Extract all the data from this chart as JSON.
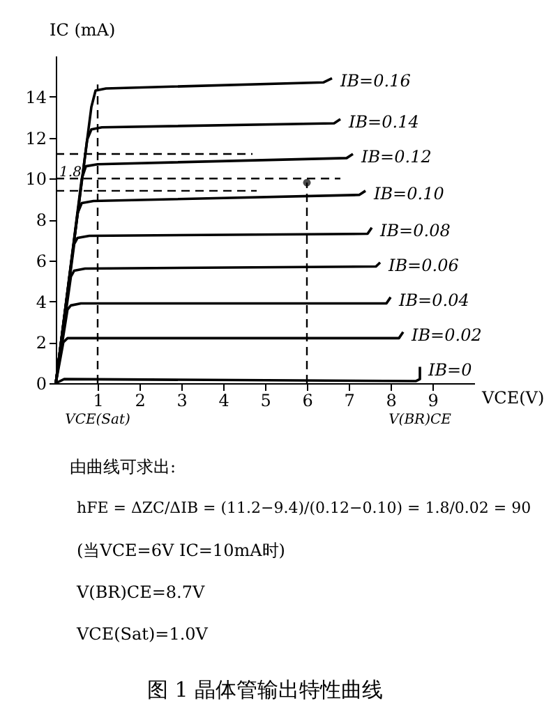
{
  "chart_data": {
    "type": "line",
    "title": "图 1   晶体管输出特性曲线",
    "xlabel": "VCE(V)",
    "ylabel": "IC (mA)",
    "xlim": [
      0,
      10
    ],
    "ylim": [
      0,
      16
    ],
    "xticks": [
      1,
      2,
      3,
      4,
      5,
      6,
      7,
      8,
      9
    ],
    "yticks": [
      0,
      2,
      4,
      6,
      8,
      10,
      12,
      14
    ],
    "grid": false,
    "series": [
      {
        "name": "IB=0.16",
        "color": "#000000",
        "x": [
          0,
          0.85,
          0.95,
          1.2,
          6.4,
          6.6
        ],
        "values": [
          0,
          13.5,
          14.3,
          14.4,
          14.7,
          14.9
        ]
      },
      {
        "name": "IB=0.14",
        "color": "#000000",
        "x": [
          0,
          0.75,
          0.85,
          1.1,
          6.65,
          6.8
        ],
        "values": [
          0,
          11.9,
          12.4,
          12.5,
          12.7,
          12.9
        ]
      },
      {
        "name": "IB=0.12",
        "color": "#000000",
        "x": [
          0,
          0.62,
          0.72,
          1.0,
          6.95,
          7.1
        ],
        "values": [
          0,
          10.0,
          10.6,
          10.7,
          11.0,
          11.2
        ]
      },
      {
        "name": "IB=0.10",
        "color": "#000000",
        "x": [
          0,
          0.52,
          0.62,
          0.9,
          7.25,
          7.4
        ],
        "values": [
          0,
          8.3,
          8.8,
          8.9,
          9.2,
          9.4
        ]
      },
      {
        "name": "IB=0.08",
        "color": "#000000",
        "x": [
          0,
          0.44,
          0.52,
          0.8,
          7.45,
          7.55
        ],
        "values": [
          0,
          6.8,
          7.1,
          7.2,
          7.3,
          7.6
        ]
      },
      {
        "name": "IB=0.06",
        "color": "#000000",
        "x": [
          0,
          0.36,
          0.44,
          0.7,
          7.65,
          7.75
        ],
        "values": [
          0,
          5.2,
          5.5,
          5.6,
          5.7,
          5.9
        ]
      },
      {
        "name": "IB=0.04",
        "color": "#000000",
        "x": [
          0,
          0.28,
          0.36,
          0.6,
          7.9,
          8.0
        ],
        "values": [
          0,
          3.6,
          3.8,
          3.9,
          3.9,
          4.2
        ]
      },
      {
        "name": "IB=0.02",
        "color": "#000000",
        "x": [
          0,
          0.18,
          0.28,
          0.5,
          8.2,
          8.3
        ],
        "values": [
          0,
          2.0,
          2.2,
          2.2,
          2.2,
          2.5
        ]
      },
      {
        "name": "IB=0",
        "color": "#000000",
        "x": [
          0,
          0.2,
          8.6,
          8.7,
          8.7
        ],
        "values": [
          0,
          0.2,
          0.1,
          0.2,
          0.8
        ]
      },
      {
        "color": "#000000",
        "line_style": "dashed",
        "x": [
          0,
          4.7
        ],
        "values": [
          11.2,
          11.2
        ]
      },
      {
        "color": "#000000",
        "line_style": "dashed",
        "x": [
          0,
          6.8
        ],
        "values": [
          10.0,
          10.0
        ]
      },
      {
        "color": "#000000",
        "line_style": "dashed",
        "x": [
          0,
          4.8
        ],
        "values": [
          9.4,
          9.4
        ]
      },
      {
        "color": "#000000",
        "line_style": "dashed",
        "x": [
          1,
          1
        ],
        "values": [
          0,
          14.6
        ]
      },
      {
        "color": "#000000",
        "line_style": "dashed",
        "x": [
          6,
          6
        ],
        "values": [
          0,
          9.8
        ]
      },
      {
        "type": "scatter",
        "marker": "circle",
        "color": "#000000",
        "x": [
          6
        ],
        "values": [
          9.8
        ]
      }
    ],
    "annotations": [
      {
        "text": "1.8",
        "x": 0.35,
        "y": 10.3
      },
      {
        "text": "VCE(Sat)",
        "x": 1,
        "y": 0
      },
      {
        "text": "V(BR)CE",
        "x": 8.7,
        "y": 0
      },
      "由曲线可求出:",
      "hFE = ΔZC/ΔIB = (11.2−9.4)/(0.12−0.10) = 1.8/0.02 = 90",
      "(当VCE=6V   IC=10mA时)",
      "V(BR)CE=8.7V",
      "VCE(Sat)=1.0V"
    ]
  }
}
